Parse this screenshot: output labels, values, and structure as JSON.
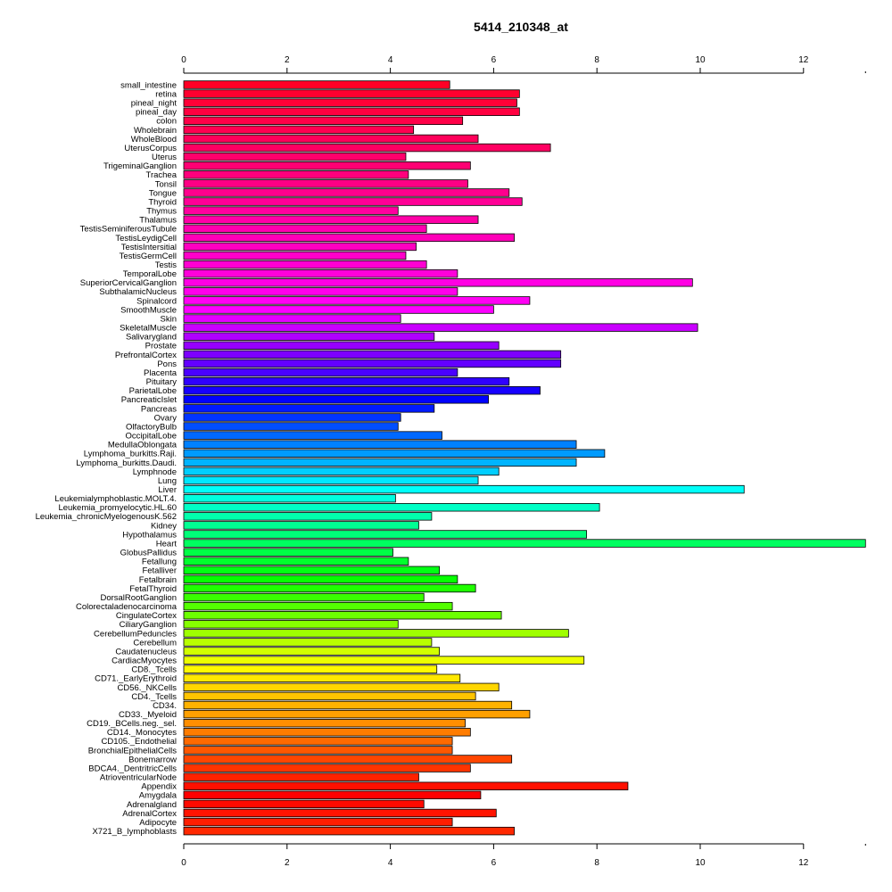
{
  "chart_data": {
    "type": "bar",
    "orientation": "horizontal",
    "title": "5414_210348_at",
    "xlabel": "",
    "ylabel": "",
    "xlim": [
      0,
      13.2
    ],
    "xticks": [
      0,
      2,
      4,
      6,
      8,
      10,
      12
    ],
    "grid": false,
    "legend": "none",
    "categories": [
      "small_intestine",
      "retina",
      "pineal_night",
      "pineal_day",
      "colon",
      "Wholebrain",
      "WholeBlood",
      "UterusCorpus",
      "Uterus",
      "TrigeminalGanglion",
      "Trachea",
      "Tonsil",
      "Tongue",
      "Thyroid",
      "Thymus",
      "Thalamus",
      "TestisSeminiferousTubule",
      "TestisLeydigCell",
      "TestisIntersitial",
      "TestisGermCell",
      "Testis",
      "TemporalLobe",
      "SuperiorCervicalGanglion",
      "SubthalamicNucleus",
      "Spinalcord",
      "SmoothMuscle",
      "Skin",
      "SkeletalMuscle",
      "Salivarygland",
      "Prostate",
      "PrefrontalCortex",
      "Pons",
      "Placenta",
      "Pituitary",
      "ParietalLobe",
      "PancreaticIslet",
      "Pancreas",
      "Ovary",
      "OlfactoryBulb",
      "OccipitalLobe",
      "MedullaOblongata",
      "Lymphoma_burkitts.Raji.",
      "Lymphoma_burkitts.Daudi.",
      "Lymphnode",
      "Lung",
      "Liver",
      "Leukemialymphoblastic.MOLT.4.",
      "Leukemia_promyelocytic.HL.60",
      "Leukemia_chronicMyelogenousK.562",
      "Kidney",
      "Hypothalamus",
      "Heart",
      "GlobusPallidus",
      "Fetallung",
      "Fetalliver",
      "Fetalbrain",
      "FetalThyroid",
      "DorsalRootGanglion",
      "Colorectaladenocarcinoma",
      "CingulateCortex",
      "CiliaryGanglion",
      "CerebellumPeduncles",
      "Cerebellum",
      "Caudatenucleus",
      "CardiacMyocytes",
      "CD8._Tcells",
      "CD71._EarlyErythroid",
      "CD56._NKCells",
      "CD4._Tcells",
      "CD34.",
      "CD33._Myeloid",
      "CD19._BCells.neg._sel.",
      "CD14._Monocytes",
      "CD105._Endothelial",
      "BronchialEpithelialCells",
      "Bonemarrow",
      "BDCA4._DentritricCells",
      "AtrioventricularNode",
      "Appendix",
      "Amygdala",
      "Adrenalgland",
      "AdrenalCortex",
      "Adipocyte",
      "X721_B_lymphoblasts"
    ],
    "values": [
      5.15,
      6.5,
      6.45,
      6.5,
      5.4,
      4.45,
      5.7,
      7.1,
      4.3,
      5.55,
      4.35,
      5.5,
      6.3,
      6.55,
      4.15,
      5.7,
      4.7,
      6.4,
      4.5,
      4.3,
      4.7,
      5.3,
      9.85,
      5.3,
      6.7,
      6.0,
      4.2,
      9.95,
      4.85,
      6.1,
      7.3,
      7.3,
      5.3,
      6.3,
      6.9,
      5.9,
      4.85,
      4.2,
      4.15,
      5.0,
      7.6,
      8.15,
      7.6,
      6.1,
      5.7,
      10.85,
      4.1,
      8.05,
      4.8,
      4.55,
      7.8,
      13.2,
      4.05,
      4.35,
      4.95,
      5.3,
      5.65,
      4.65,
      5.2,
      6.15,
      4.15,
      7.45,
      4.8,
      4.95,
      7.75,
      4.9,
      5.35,
      6.1,
      5.65,
      6.35,
      6.7,
      5.45,
      5.55,
      5.2,
      5.2,
      6.35,
      5.55,
      4.55,
      8.6,
      5.75,
      4.65,
      6.05,
      5.2,
      6.4
    ],
    "colors": [
      "#ff0026",
      "#ff002f",
      "#ff0037",
      "#ff0040",
      "#ff0048",
      "#ff0051",
      "#ff005a",
      "#ff0062",
      "#ff006b",
      "#ff0073",
      "#ff007c",
      "#ff0084",
      "#ff008d",
      "#ff0096",
      "#ff009e",
      "#ff00a7",
      "#ff00af",
      "#ff00b8",
      "#ff00c0",
      "#ff00c9",
      "#ff00d2",
      "#ff00da",
      "#ff00e3",
      "#ff00eb",
      "#ff00f4",
      "#fc00ff",
      "#e300ff",
      "#c900ff",
      "#b000ff",
      "#9600ff",
      "#7d00ff",
      "#6300ff",
      "#4a00ff",
      "#3000ff",
      "#1700ff",
      "#0002ff",
      "#001bff",
      "#0035ff",
      "#004eff",
      "#0068ff",
      "#0081ff",
      "#009bff",
      "#00b4ff",
      "#00ceff",
      "#00e7ff",
      "#00fff9",
      "#00ffdf",
      "#00ffc6",
      "#00ffac",
      "#00ff93",
      "#00ff79",
      "#00ff60",
      "#00ff46",
      "#00ff2d",
      "#00ff13",
      "#06ff00",
      "#20ff00",
      "#39ff00",
      "#53ff00",
      "#6cff00",
      "#86ff00",
      "#9fff00",
      "#b9ff00",
      "#d2ff00",
      "#ecff00",
      "#fffa00",
      "#ffe800",
      "#ffd600",
      "#ffc400",
      "#ffb200",
      "#ffa000",
      "#ff8e00",
      "#ff7c00",
      "#ff6a00",
      "#ff5800",
      "#ff4600",
      "#ff3400",
      "#ff2200",
      "#ff1000",
      "#ff0000",
      "#ff0a00",
      "#ff1400",
      "#ff1e00",
      "#ff2800"
    ]
  }
}
